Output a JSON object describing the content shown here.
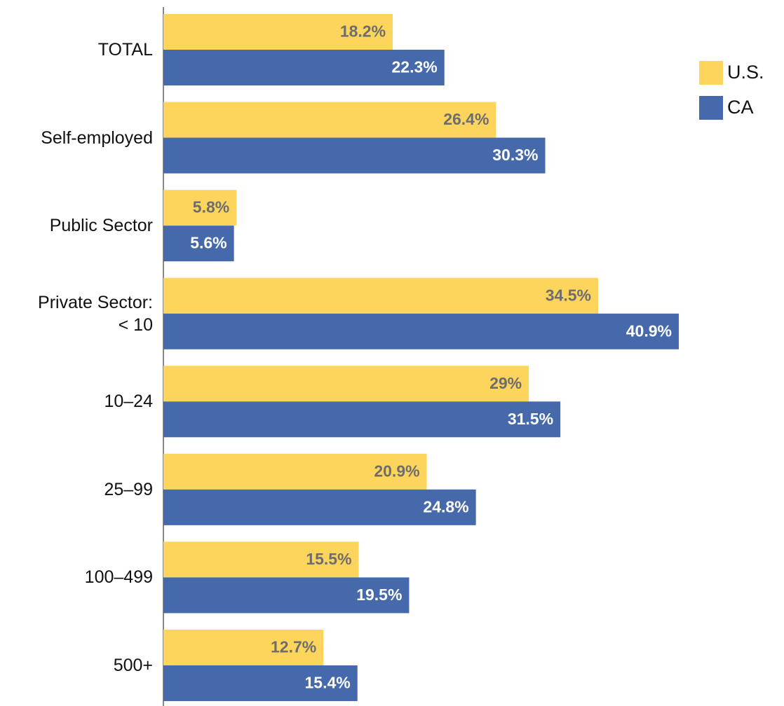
{
  "chart_data": {
    "type": "barh",
    "categories": [
      "TOTAL",
      "Self-employed",
      "Public Sector",
      "Private Sector:\n< 10",
      "10–24",
      "25–99",
      "100–499",
      "500+"
    ],
    "series": [
      {
        "name": "U.S.",
        "color": "#fdd45c",
        "label_color": "#6d6d6d",
        "values": [
          18.2,
          26.4,
          5.8,
          34.5,
          29,
          20.9,
          15.5,
          12.7
        ],
        "value_labels": [
          "18.2%",
          "26.4%",
          "5.8%",
          "34.5%",
          "29%",
          "20.9%",
          "15.5%",
          "12.7%"
        ]
      },
      {
        "name": "CA",
        "color": "#4569aa",
        "label_color": "#ffffff",
        "values": [
          22.3,
          30.3,
          5.6,
          40.9,
          31.5,
          24.8,
          19.5,
          15.4
        ],
        "value_labels": [
          "22.3%",
          "30.3%",
          "5.6%",
          "40.9%",
          "31.5%",
          "24.8%",
          "19.5%",
          "15.4%"
        ]
      }
    ],
    "legend": "top-right"
  }
}
